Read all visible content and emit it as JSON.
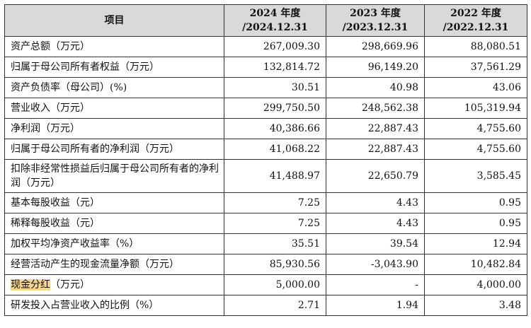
{
  "header": {
    "item": "项目",
    "years": [
      {
        "line1": "2024 年度",
        "line2": "/2024.12.31"
      },
      {
        "line1": "2023 年度",
        "line2": "/2023.12.31"
      },
      {
        "line1": "2022 年度",
        "line2": "/2022.12.31"
      }
    ]
  },
  "rows": [
    {
      "label": "资产总额（万元）",
      "values": [
        "267,009.30",
        "298,669.96",
        "88,080.51"
      ]
    },
    {
      "label": "归属于母公司所有者权益（万元）",
      "values": [
        "132,814.72",
        "96,149.20",
        "37,561.29"
      ]
    },
    {
      "label": "资产负债率（母公司）(%)",
      "values": [
        "30.51",
        "40.98",
        "43.06"
      ]
    },
    {
      "label": "营业收入（万元）",
      "values": [
        "299,750.50",
        "248,562.38",
        "105,319.94"
      ]
    },
    {
      "label": "净利润（万元）",
      "values": [
        "40,386.66",
        "22,887.43",
        "4,755.60"
      ]
    },
    {
      "label": "归属于母公司所有者的净利润（万元）",
      "values": [
        "41,068.22",
        "22,887.43",
        "4,755.60"
      ]
    },
    {
      "label": "扣除非经常性损益后归属于母公司所有者的净利润（万元）",
      "values": [
        "41,488.97",
        "22,650.79",
        "3,585.45"
      ]
    },
    {
      "label": "基本每股收益（元）",
      "values": [
        "7.25",
        "4.43",
        "0.95"
      ]
    },
    {
      "label": "稀释每股收益（元）",
      "values": [
        "7.25",
        "4.43",
        "0.95"
      ]
    },
    {
      "label": "加权平均净资产收益率（%）",
      "values": [
        "35.51",
        "39.54",
        "12.94"
      ]
    },
    {
      "label": "经营活动产生的现金流量净额（万元）",
      "values": [
        "85,930.56",
        "-3,043.90",
        "10,482.84"
      ]
    },
    {
      "label_highlight": "现金分红",
      "label_rest": "（万元）",
      "values": [
        "5,000.00",
        "-",
        "4,000.00"
      ]
    },
    {
      "label": "研发投入占营业收入的比例（%）",
      "values": [
        "2.71",
        "1.94",
        "3.48"
      ]
    }
  ],
  "colors": {
    "header_bg": "#d9d9d9",
    "highlight": "#f3d58b",
    "border": "#333333"
  }
}
